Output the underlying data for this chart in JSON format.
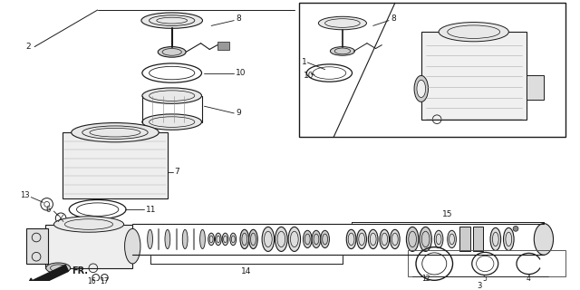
{
  "bg_color": "#ffffff",
  "line_color": "#1a1a1a",
  "fig_width": 6.4,
  "fig_height": 3.2,
  "dpi": 100
}
